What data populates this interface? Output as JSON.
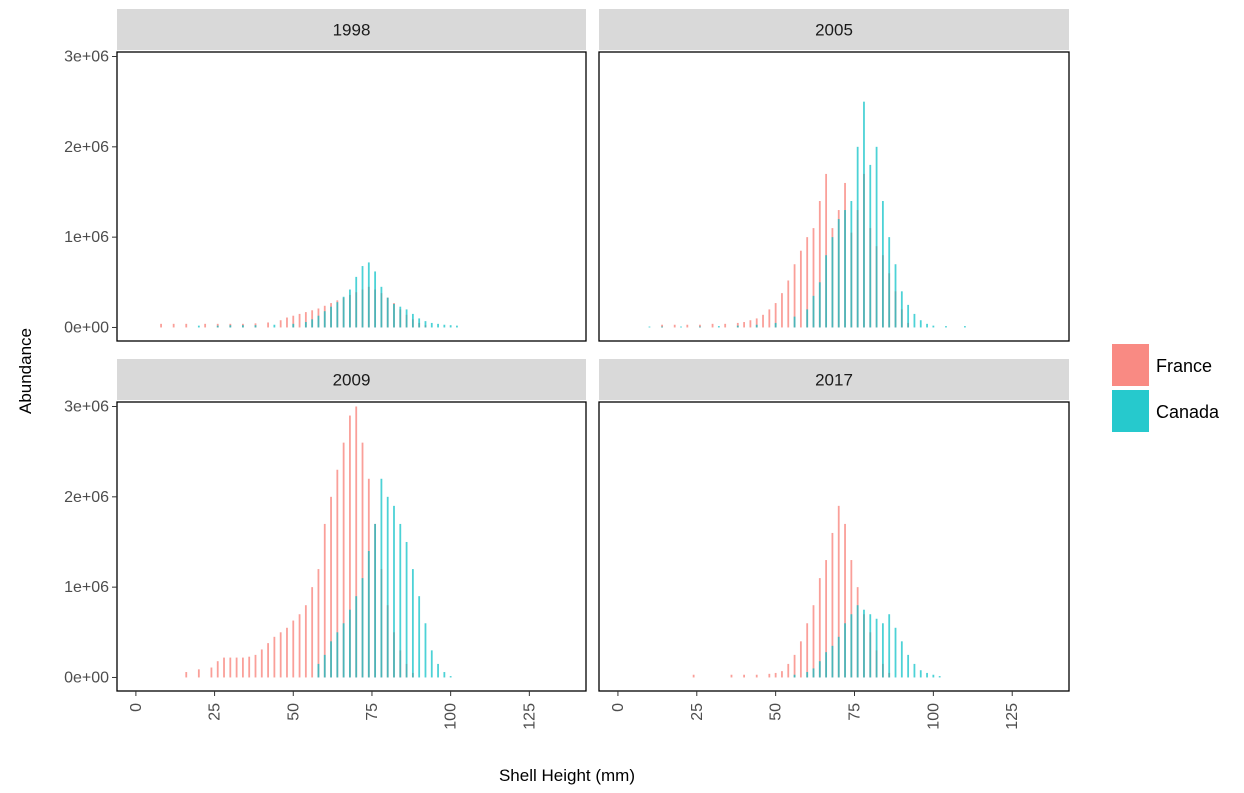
{
  "chart_data": {
    "type": "bar",
    "xlabel": "Shell Height (mm)",
    "ylabel": "Abundance",
    "xlim": [
      -6,
      143
    ],
    "ylim": [
      -150000,
      3050000
    ],
    "x_ticks": [
      0,
      25,
      50,
      75,
      100,
      125
    ],
    "x_tick_labels": [
      "0",
      "25",
      "50",
      "75",
      "100",
      "125"
    ],
    "y_ticks": [
      0,
      1000000,
      2000000,
      3000000
    ],
    "y_tick_labels": [
      "0e+00",
      "1e+06",
      "2e+06",
      "3e+06"
    ],
    "grid": false,
    "legend_position": "right",
    "series_colors": {
      "France": "#F8766D",
      "Canada": "#00BFC4"
    },
    "legend": [
      {
        "name": "France",
        "color": "#F8766D"
      },
      {
        "name": "Canada",
        "color": "#00BFC4"
      }
    ],
    "panels": [
      {
        "label": "1998",
        "series": [
          {
            "name": "France",
            "x": [
              8,
              12,
              16,
              22,
              26,
              30,
              34,
              38,
              42,
              46,
              48,
              50,
              52,
              54,
              56,
              58,
              60,
              62,
              64,
              66,
              68,
              70,
              72,
              74,
              76,
              78,
              80,
              82,
              84,
              86,
              88,
              90,
              92
            ],
            "values": [
              40000,
              40000,
              40000,
              40000,
              40000,
              40000,
              40000,
              45000,
              55000,
              80000,
              110000,
              130000,
              150000,
              170000,
              190000,
              210000,
              240000,
              270000,
              300000,
              330000,
              360000,
              390000,
              420000,
              450000,
              420000,
              380000,
              330000,
              270000,
              200000,
              140000,
              90000,
              50000,
              25000
            ]
          },
          {
            "name": "Canada",
            "x": [
              20,
              26,
              30,
              34,
              38,
              44,
              50,
              54,
              56,
              58,
              60,
              62,
              64,
              66,
              68,
              70,
              72,
              74,
              76,
              78,
              80,
              82,
              84,
              86,
              88,
              90,
              92,
              94,
              96,
              98,
              100,
              102
            ],
            "values": [
              20000,
              20000,
              25000,
              25000,
              25000,
              30000,
              40000,
              60000,
              90000,
              130000,
              180000,
              230000,
              280000,
              340000,
              420000,
              560000,
              680000,
              720000,
              620000,
              450000,
              330000,
              260000,
              230000,
              200000,
              150000,
              100000,
              70000,
              50000,
              40000,
              30000,
              25000,
              20000
            ]
          }
        ]
      },
      {
        "label": "2005",
        "series": [
          {
            "name": "France",
            "x": [
              14,
              18,
              22,
              26,
              30,
              34,
              38,
              40,
              42,
              44,
              46,
              48,
              50,
              52,
              54,
              56,
              58,
              60,
              62,
              64,
              66,
              68,
              70,
              72,
              74,
              76,
              78,
              80,
              82,
              84,
              86,
              88,
              90,
              92
            ],
            "values": [
              30000,
              30000,
              30000,
              30000,
              40000,
              40000,
              50000,
              60000,
              80000,
              100000,
              140000,
              200000,
              270000,
              380000,
              520000,
              700000,
              850000,
              1000000,
              1100000,
              1400000,
              1700000,
              1100000,
              1300000,
              1600000,
              1050000,
              1300000,
              1700000,
              1100000,
              900000,
              800000,
              600000,
              400000,
              200000,
              50000
            ]
          },
          {
            "name": "Canada",
            "x": [
              10,
              14,
              20,
              26,
              32,
              38,
              44,
              50,
              56,
              60,
              62,
              64,
              66,
              68,
              70,
              72,
              74,
              76,
              78,
              80,
              82,
              84,
              86,
              88,
              90,
              92,
              94,
              96,
              98,
              100,
              104,
              110
            ],
            "values": [
              10000,
              10000,
              10000,
              10000,
              15000,
              20000,
              30000,
              50000,
              120000,
              200000,
              350000,
              500000,
              800000,
              1000000,
              1200000,
              1300000,
              1400000,
              2000000,
              2500000,
              1800000,
              2000000,
              1400000,
              1000000,
              700000,
              400000,
              250000,
              150000,
              80000,
              40000,
              20000,
              15000,
              15000
            ]
          }
        ]
      },
      {
        "label": "2009",
        "series": [
          {
            "name": "France",
            "x": [
              16,
              20,
              24,
              26,
              28,
              30,
              32,
              34,
              36,
              38,
              40,
              42,
              44,
              46,
              48,
              50,
              52,
              54,
              56,
              58,
              60,
              62,
              64,
              66,
              68,
              70,
              72,
              74,
              76,
              78,
              80,
              82,
              84,
              86,
              88
            ],
            "values": [
              60000,
              90000,
              110000,
              180000,
              220000,
              220000,
              220000,
              220000,
              230000,
              250000,
              310000,
              380000,
              450000,
              500000,
              550000,
              630000,
              700000,
              800000,
              1000000,
              1200000,
              1700000,
              2000000,
              2300000,
              2600000,
              2900000,
              3000000,
              2600000,
              2200000,
              1700000,
              1200000,
              800000,
              500000,
              300000,
              150000,
              50000
            ]
          },
          {
            "name": "Canada",
            "x": [
              58,
              60,
              62,
              64,
              66,
              68,
              70,
              72,
              74,
              76,
              78,
              80,
              82,
              84,
              86,
              88,
              90,
              92,
              94,
              96,
              98,
              100
            ],
            "values": [
              150000,
              250000,
              400000,
              500000,
              600000,
              750000,
              900000,
              1100000,
              1400000,
              1700000,
              2200000,
              2000000,
              1900000,
              1700000,
              1500000,
              1200000,
              900000,
              600000,
              300000,
              150000,
              60000,
              15000
            ]
          }
        ]
      },
      {
        "label": "2017",
        "series": [
          {
            "name": "France",
            "x": [
              24,
              36,
              40,
              44,
              48,
              50,
              52,
              54,
              56,
              58,
              60,
              62,
              64,
              66,
              68,
              70,
              72,
              74,
              76,
              78,
              80,
              82,
              84,
              86
            ],
            "values": [
              30000,
              30000,
              30000,
              30000,
              40000,
              50000,
              70000,
              150000,
              250000,
              400000,
              600000,
              800000,
              1100000,
              1300000,
              1600000,
              1900000,
              1700000,
              1300000,
              1000000,
              700000,
              500000,
              300000,
              150000,
              50000
            ]
          },
          {
            "name": "Canada",
            "x": [
              56,
              60,
              62,
              64,
              66,
              68,
              70,
              72,
              74,
              76,
              78,
              80,
              82,
              84,
              86,
              88,
              90,
              92,
              94,
              96,
              98,
              100,
              102
            ],
            "values": [
              30000,
              60000,
              100000,
              180000,
              280000,
              350000,
              450000,
              600000,
              700000,
              800000,
              750000,
              700000,
              650000,
              600000,
              700000,
              550000,
              400000,
              250000,
              150000,
              80000,
              50000,
              30000,
              15000
            ]
          }
        ]
      }
    ]
  }
}
